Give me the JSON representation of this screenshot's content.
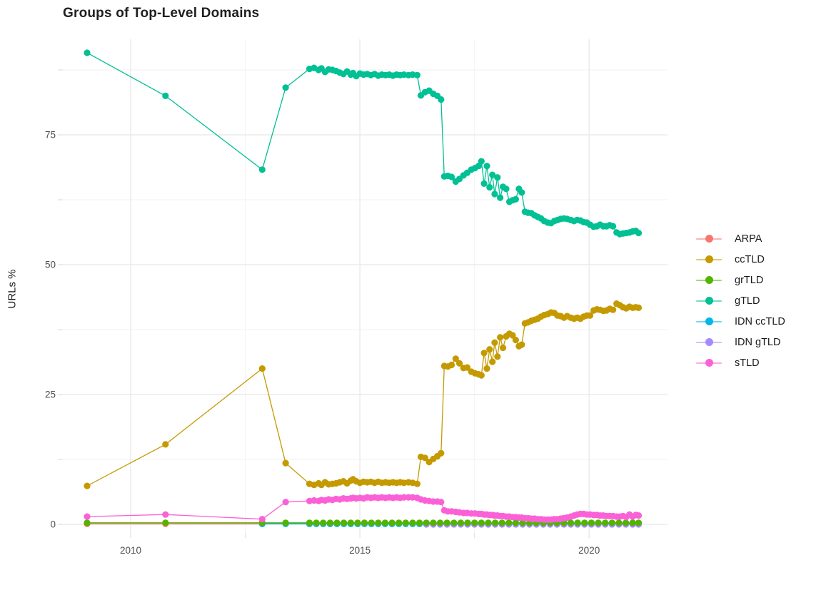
{
  "chart_data": {
    "type": "line",
    "title": "Groups of Top-Level Domains",
    "xlabel": "",
    "ylabel": "URLs %",
    "grid": "on",
    "legend_position": "right",
    "xlim": [
      2008.52,
      2021.71
    ],
    "ylim": [
      -1.65,
      93.41
    ],
    "x_ticks": [
      2010,
      2015,
      2020
    ],
    "x_tick_labels": [
      "2010",
      "2015",
      "2020"
    ],
    "x_minor": [
      2012.5,
      2017.5
    ],
    "y_ticks": [
      0,
      25,
      50,
      75
    ],
    "y_tick_labels": [
      "0",
      "25",
      "50",
      "75"
    ],
    "y_minor": [
      12.5,
      37.5,
      62.5,
      87.5
    ],
    "series": [
      {
        "name": "ARPA",
        "color": "#F8766D",
        "x": [
          2009.05,
          2010.76,
          2012.87,
          2013.38,
          2013.9,
          2014.05,
          2014.2,
          2014.35,
          2014.5,
          2014.65,
          2014.8,
          2014.95,
          2015.1,
          2015.25,
          2015.4,
          2015.55,
          2015.7,
          2015.85,
          2016.0,
          2016.15,
          2016.3,
          2016.45,
          2016.6,
          2016.75,
          2016.9,
          2017.05,
          2017.2,
          2017.35,
          2017.5,
          2017.65,
          2017.8,
          2017.95,
          2018.1,
          2018.25,
          2018.4,
          2018.55,
          2018.7,
          2018.85,
          2019.0,
          2019.15,
          2019.3,
          2019.45,
          2019.6,
          2019.75,
          2019.9,
          2020.05,
          2020.2,
          2020.35,
          2020.5,
          2020.65,
          2020.8,
          2020.95,
          2021.08
        ],
        "y_const": 0.1
      },
      {
        "name": "ccTLD",
        "color": "#C49A00",
        "x": [
          2009.05,
          2010.76,
          2012.87,
          2013.38,
          2013.9,
          2014.0,
          2014.1,
          2014.16,
          2014.24,
          2014.32,
          2014.4,
          2014.48,
          2014.56,
          2014.64,
          2014.72,
          2014.8,
          2014.85,
          2014.92,
          2015.0,
          2015.08,
          2015.16,
          2015.24,
          2015.32,
          2015.4,
          2015.48,
          2015.56,
          2015.64,
          2015.72,
          2015.8,
          2015.88,
          2015.96,
          2016.06,
          2016.15,
          2016.25,
          2016.33,
          2016.42,
          2016.51,
          2016.6,
          2016.69,
          2016.77,
          2016.84,
          2016.92,
          2017.0,
          2017.09,
          2017.17,
          2017.26,
          2017.34,
          2017.43,
          2017.51,
          2017.59,
          2017.65,
          2017.71,
          2017.77,
          2017.83,
          2017.89,
          2017.94,
          2018.0,
          2018.06,
          2018.12,
          2018.19,
          2018.26,
          2018.33,
          2018.4,
          2018.47,
          2018.53,
          2018.6,
          2018.67,
          2018.74,
          2018.81,
          2018.88,
          2018.95,
          2019.02,
          2019.1,
          2019.17,
          2019.24,
          2019.31,
          2019.38,
          2019.45,
          2019.52,
          2019.6,
          2019.67,
          2019.74,
          2019.81,
          2019.88,
          2019.95,
          2020.02,
          2020.1,
          2020.17,
          2020.24,
          2020.31,
          2020.38,
          2020.45,
          2020.52,
          2020.6,
          2020.67,
          2020.74,
          2020.81,
          2020.88,
          2020.95,
          2021.02,
          2021.08
        ],
        "y": [
          7.4,
          15.4,
          30.0,
          11.8,
          7.8,
          7.6,
          7.9,
          7.6,
          8.1,
          7.7,
          7.8,
          7.9,
          8.1,
          8.3,
          7.9,
          8.4,
          8.7,
          8.3,
          8.0,
          8.2,
          8.1,
          8.2,
          8.0,
          8.2,
          8.0,
          8.1,
          8.0,
          8.1,
          8.0,
          8.1,
          8.0,
          8.1,
          8.0,
          7.8,
          13.0,
          12.8,
          12.0,
          12.6,
          13.1,
          13.7,
          30.5,
          30.4,
          30.7,
          31.9,
          31.0,
          30.1,
          30.2,
          29.4,
          29.1,
          28.9,
          28.7,
          33.0,
          30.0,
          33.7,
          31.3,
          35.0,
          32.3,
          36.0,
          34.0,
          36.2,
          36.7,
          36.4,
          35.5,
          34.3,
          34.6,
          38.7,
          38.9,
          39.2,
          39.4,
          39.6,
          40.0,
          40.3,
          40.5,
          40.8,
          40.7,
          40.2,
          40.1,
          39.8,
          40.1,
          39.8,
          39.6,
          39.8,
          39.6,
          40.0,
          40.2,
          40.2,
          41.2,
          41.4,
          41.3,
          41.1,
          41.2,
          41.5,
          41.3,
          42.5,
          42.2,
          41.8,
          41.6,
          41.9,
          41.7,
          41.8,
          41.7
        ]
      },
      {
        "name": "grTLD",
        "color": "#53B400",
        "x": [
          2009.05,
          2010.76,
          2012.87,
          2013.38,
          2013.9,
          2014.05,
          2014.2,
          2014.35,
          2014.5,
          2014.65,
          2014.8,
          2014.95,
          2015.1,
          2015.25,
          2015.4,
          2015.55,
          2015.7,
          2015.85,
          2016.0,
          2016.15,
          2016.3,
          2016.45,
          2016.6,
          2016.75,
          2016.9,
          2017.05,
          2017.2,
          2017.35,
          2017.5,
          2017.65,
          2017.8,
          2017.95,
          2018.1,
          2018.25,
          2018.4,
          2018.55,
          2018.7,
          2018.85,
          2019.0,
          2019.15,
          2019.3,
          2019.45,
          2019.6,
          2019.75,
          2019.9,
          2020.05,
          2020.2,
          2020.35,
          2020.5,
          2020.65,
          2020.8,
          2020.95,
          2021.08
        ],
        "y_const": 0.3
      },
      {
        "name": "gTLD",
        "color": "#00C094",
        "x": [
          2009.05,
          2010.76,
          2012.87,
          2013.38,
          2013.9,
          2014.0,
          2014.1,
          2014.16,
          2014.24,
          2014.32,
          2014.4,
          2014.48,
          2014.56,
          2014.64,
          2014.72,
          2014.8,
          2014.85,
          2014.92,
          2015.0,
          2015.08,
          2015.16,
          2015.24,
          2015.32,
          2015.4,
          2015.48,
          2015.56,
          2015.64,
          2015.72,
          2015.8,
          2015.88,
          2015.96,
          2016.06,
          2016.15,
          2016.25,
          2016.33,
          2016.42,
          2016.51,
          2016.6,
          2016.69,
          2016.77,
          2016.84,
          2016.92,
          2017.0,
          2017.09,
          2017.17,
          2017.26,
          2017.34,
          2017.43,
          2017.51,
          2017.59,
          2017.65,
          2017.71,
          2017.77,
          2017.83,
          2017.89,
          2017.94,
          2018.0,
          2018.06,
          2018.12,
          2018.19,
          2018.26,
          2018.33,
          2018.4,
          2018.47,
          2018.53,
          2018.6,
          2018.67,
          2018.74,
          2018.81,
          2018.88,
          2018.95,
          2019.02,
          2019.1,
          2019.17,
          2019.24,
          2019.31,
          2019.38,
          2019.45,
          2019.52,
          2019.6,
          2019.67,
          2019.74,
          2019.81,
          2019.88,
          2019.95,
          2020.02,
          2020.1,
          2020.17,
          2020.24,
          2020.31,
          2020.38,
          2020.45,
          2020.52,
          2020.6,
          2020.67,
          2020.74,
          2020.81,
          2020.88,
          2020.95,
          2021.02,
          2021.08
        ],
        "y": [
          90.8,
          82.5,
          68.3,
          84.1,
          87.7,
          87.9,
          87.5,
          87.8,
          87.1,
          87.6,
          87.5,
          87.3,
          87.0,
          86.7,
          87.2,
          86.6,
          86.9,
          86.3,
          86.8,
          86.6,
          86.7,
          86.5,
          86.7,
          86.4,
          86.6,
          86.5,
          86.6,
          86.4,
          86.6,
          86.5,
          86.6,
          86.5,
          86.6,
          86.5,
          82.6,
          83.2,
          83.5,
          82.9,
          82.5,
          81.8,
          67.0,
          67.1,
          66.9,
          66.0,
          66.5,
          67.2,
          67.7,
          68.3,
          68.6,
          69.0,
          69.9,
          65.6,
          69.0,
          64.9,
          67.3,
          63.6,
          66.8,
          62.9,
          65.0,
          64.6,
          62.1,
          62.4,
          62.6,
          64.6,
          63.9,
          60.2,
          60.0,
          59.9,
          59.5,
          59.2,
          58.9,
          58.4,
          58.1,
          58.0,
          58.4,
          58.6,
          58.8,
          58.9,
          58.8,
          58.6,
          58.4,
          58.6,
          58.5,
          58.2,
          58.1,
          57.7,
          57.3,
          57.4,
          57.7,
          57.4,
          57.4,
          57.6,
          57.4,
          56.2,
          55.9,
          56.0,
          56.1,
          56.2,
          56.4,
          56.5,
          56.1
        ]
      },
      {
        "name": "IDN ccTLD",
        "color": "#00B6EB",
        "x": [
          2012.87,
          2013.38,
          2013.9,
          2014.05,
          2014.2,
          2014.35,
          2014.5,
          2014.65,
          2014.8,
          2014.95,
          2015.1,
          2015.25,
          2015.4,
          2015.55,
          2015.7,
          2015.85,
          2016.0,
          2016.15,
          2016.3,
          2016.45,
          2016.6,
          2016.75,
          2016.9,
          2017.05,
          2017.2,
          2017.35,
          2017.5,
          2017.65,
          2017.8,
          2017.95,
          2018.1,
          2018.25,
          2018.4,
          2018.55,
          2018.7,
          2018.85,
          2019.0,
          2019.15,
          2019.3,
          2019.45,
          2019.6,
          2019.75,
          2019.9,
          2020.05,
          2020.2,
          2020.35,
          2020.5,
          2020.65,
          2020.8,
          2020.95,
          2021.08
        ],
        "y_const": 0.1
      },
      {
        "name": "IDN gTLD",
        "color": "#A58AFF",
        "x": [
          2016.45,
          2016.6,
          2016.75,
          2016.9,
          2017.05,
          2017.2,
          2017.35,
          2017.5,
          2017.65,
          2017.8,
          2017.95,
          2018.1,
          2018.25,
          2018.4,
          2018.55,
          2018.7,
          2018.85,
          2019.0,
          2019.15,
          2019.3,
          2019.45,
          2019.6,
          2019.75,
          2019.9,
          2020.05,
          2020.2,
          2020.35,
          2020.5,
          2020.65,
          2020.8,
          2020.95,
          2021.08
        ],
        "y_const": 0.0
      },
      {
        "name": "sTLD",
        "color": "#FB61D7",
        "x": [
          2009.05,
          2010.76,
          2012.87,
          2013.38,
          2013.9,
          2014.0,
          2014.1,
          2014.16,
          2014.24,
          2014.32,
          2014.4,
          2014.48,
          2014.56,
          2014.64,
          2014.72,
          2014.8,
          2014.85,
          2014.92,
          2015.0,
          2015.08,
          2015.16,
          2015.24,
          2015.32,
          2015.4,
          2015.48,
          2015.56,
          2015.64,
          2015.72,
          2015.8,
          2015.88,
          2015.96,
          2016.06,
          2016.15,
          2016.25,
          2016.33,
          2016.42,
          2016.51,
          2016.6,
          2016.69,
          2016.77,
          2016.84,
          2016.92,
          2017.0,
          2017.09,
          2017.17,
          2017.26,
          2017.34,
          2017.43,
          2017.51,
          2017.59,
          2017.65,
          2017.71,
          2017.77,
          2017.83,
          2017.89,
          2017.94,
          2018.0,
          2018.06,
          2018.12,
          2018.19,
          2018.26,
          2018.33,
          2018.4,
          2018.47,
          2018.53,
          2018.6,
          2018.67,
          2018.74,
          2018.81,
          2018.88,
          2018.95,
          2019.02,
          2019.1,
          2019.17,
          2019.24,
          2019.31,
          2019.38,
          2019.45,
          2019.52,
          2019.6,
          2019.67,
          2019.74,
          2019.81,
          2019.88,
          2019.95,
          2020.02,
          2020.1,
          2020.17,
          2020.24,
          2020.31,
          2020.38,
          2020.45,
          2020.52,
          2020.6,
          2020.67,
          2020.74,
          2020.81,
          2020.88,
          2020.95,
          2021.02,
          2021.08
        ],
        "y": [
          1.5,
          1.9,
          1.0,
          4.3,
          4.5,
          4.6,
          4.5,
          4.7,
          4.6,
          4.8,
          4.7,
          4.9,
          4.8,
          5.0,
          4.9,
          5.0,
          5.1,
          5.0,
          5.1,
          5.0,
          5.2,
          5.1,
          5.2,
          5.1,
          5.2,
          5.1,
          5.2,
          5.1,
          5.2,
          5.1,
          5.2,
          5.2,
          5.2,
          5.1,
          4.8,
          4.6,
          4.5,
          4.4,
          4.4,
          4.3,
          2.7,
          2.5,
          2.5,
          2.4,
          2.3,
          2.2,
          2.2,
          2.1,
          2.1,
          2.0,
          2.0,
          1.9,
          1.9,
          1.8,
          1.8,
          1.7,
          1.7,
          1.6,
          1.6,
          1.5,
          1.5,
          1.4,
          1.4,
          1.3,
          1.3,
          1.2,
          1.2,
          1.1,
          1.1,
          1.0,
          1.0,
          0.9,
          0.9,
          0.9,
          1.0,
          1.0,
          1.1,
          1.2,
          1.3,
          1.5,
          1.7,
          1.9,
          2.0,
          2.0,
          1.9,
          1.9,
          1.8,
          1.8,
          1.7,
          1.7,
          1.6,
          1.6,
          1.6,
          1.5,
          1.5,
          1.6,
          1.4,
          1.9,
          1.5,
          1.8,
          1.7
        ]
      }
    ]
  }
}
